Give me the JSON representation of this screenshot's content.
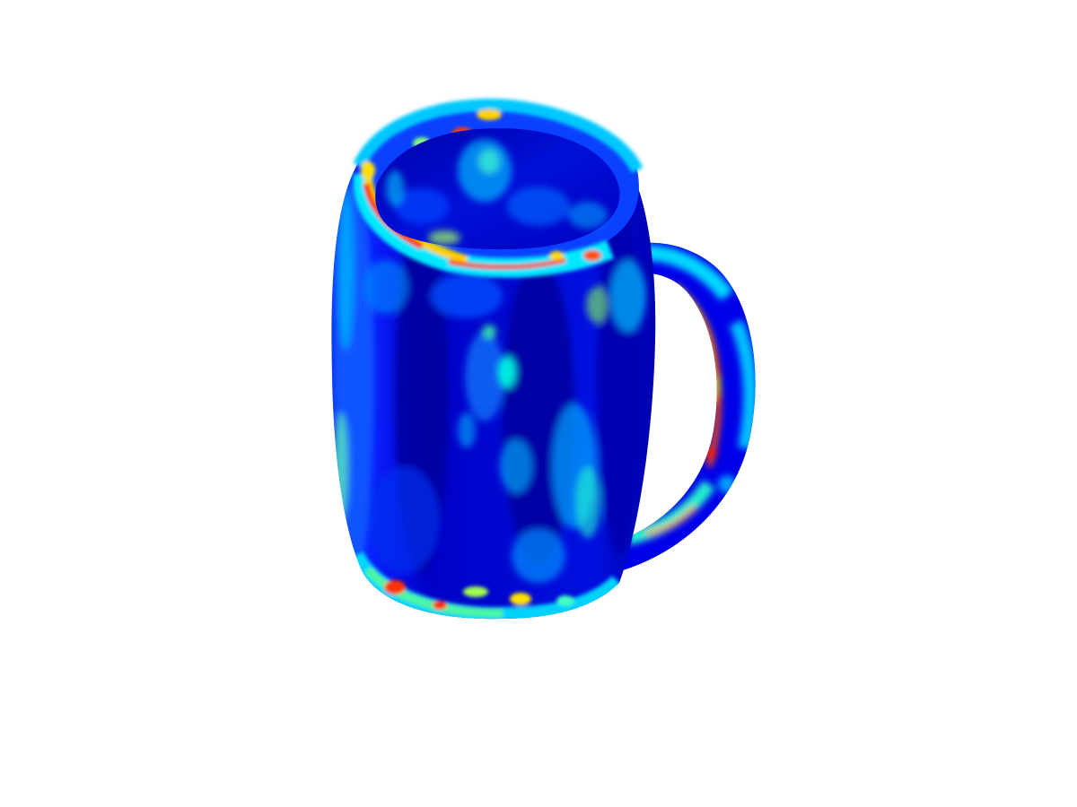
{
  "scene": {
    "object": "mug",
    "colormap": "jet",
    "background_color": "#ffffff",
    "colormap_stops": [
      "#00007f",
      "#0000ff",
      "#0080ff",
      "#00ffff",
      "#80ff80",
      "#ffff00",
      "#ff8000",
      "#ff0000",
      "#7f0000"
    ]
  }
}
